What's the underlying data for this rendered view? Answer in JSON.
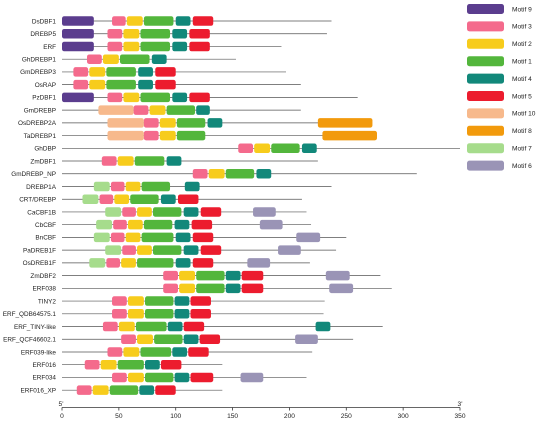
{
  "chart_data": {
    "type": "motif-distribution",
    "x_axis": {
      "min": 0,
      "max": 350,
      "ticks": [
        0,
        50,
        100,
        150,
        200,
        250,
        300,
        350
      ],
      "start_label": "5'",
      "end_label": "3'"
    },
    "motifs": [
      {
        "name": "Motif 9",
        "color": "#5b3d8e"
      },
      {
        "name": "Motif 3",
        "color": "#f46a8c"
      },
      {
        "name": "Motif 2",
        "color": "#f7cc1c"
      },
      {
        "name": "Motif 1",
        "color": "#53b63c"
      },
      {
        "name": "Motif 4",
        "color": "#12887a"
      },
      {
        "name": "Motif 5",
        "color": "#ec1c2e"
      },
      {
        "name": "Motif 10",
        "color": "#f7b98c"
      },
      {
        "name": "Motif 8",
        "color": "#f29a0c"
      },
      {
        "name": "Motif 7",
        "color": "#a6dc8c"
      },
      {
        "name": "Motif 6",
        "color": "#9a94b6"
      }
    ],
    "sequences": [
      {
        "name": "DsDBF1",
        "length": 237,
        "motifs": [
          [
            "Motif 9",
            0,
            28
          ],
          [
            "Motif 3",
            44,
            56
          ],
          [
            "Motif 2",
            57,
            71
          ],
          [
            "Motif 1",
            72,
            98
          ],
          [
            "Motif 4",
            100,
            113
          ],
          [
            "Motif 5",
            115,
            133
          ]
        ]
      },
      {
        "name": "DREBP5",
        "length": 233,
        "motifs": [
          [
            "Motif 9",
            0,
            28
          ],
          [
            "Motif 3",
            40,
            53
          ],
          [
            "Motif 2",
            54,
            68
          ],
          [
            "Motif 1",
            69,
            95
          ],
          [
            "Motif 4",
            97,
            110
          ],
          [
            "Motif 5",
            112,
            130
          ]
        ]
      },
      {
        "name": "ERF",
        "length": 193,
        "motifs": [
          [
            "Motif 9",
            0,
            28
          ],
          [
            "Motif 3",
            40,
            53
          ],
          [
            "Motif 2",
            54,
            68
          ],
          [
            "Motif 1",
            69,
            95
          ],
          [
            "Motif 4",
            97,
            110
          ],
          [
            "Motif 5",
            112,
            130
          ]
        ]
      },
      {
        "name": "GhDREBP1",
        "length": 153,
        "motifs": [
          [
            "Motif 3",
            22,
            35
          ],
          [
            "Motif 2",
            36,
            50
          ],
          [
            "Motif 1",
            51,
            77
          ],
          [
            "Motif 4",
            79,
            92
          ]
        ]
      },
      {
        "name": "GmDREBP3",
        "length": 197,
        "motifs": [
          [
            "Motif 3",
            10,
            23
          ],
          [
            "Motif 2",
            24,
            38
          ],
          [
            "Motif 1",
            39,
            65
          ],
          [
            "Motif 4",
            67,
            80
          ],
          [
            "Motif 5",
            82,
            100
          ]
        ]
      },
      {
        "name": "OsRAP",
        "length": 210,
        "motifs": [
          [
            "Motif 3",
            10,
            23
          ],
          [
            "Motif 2",
            24,
            38
          ],
          [
            "Motif 1",
            39,
            65
          ],
          [
            "Motif 4",
            67,
            80
          ],
          [
            "Motif 5",
            82,
            100
          ]
        ]
      },
      {
        "name": "PzDBF1",
        "length": 260,
        "motifs": [
          [
            "Motif 9",
            0,
            28
          ],
          [
            "Motif 3",
            40,
            53
          ],
          [
            "Motif 2",
            54,
            68
          ],
          [
            "Motif 1",
            69,
            95
          ],
          [
            "Motif 4",
            97,
            110
          ],
          [
            "Motif 5",
            112,
            130
          ]
        ]
      },
      {
        "name": "GmDREBP",
        "length": 210,
        "motifs": [
          [
            "Motif 10",
            32,
            63
          ],
          [
            "Motif 3",
            63,
            76
          ],
          [
            "Motif 2",
            77,
            91
          ],
          [
            "Motif 1",
            92,
            117
          ],
          [
            "Motif 4",
            118,
            130
          ]
        ]
      },
      {
        "name": "OsDREBP2A",
        "length": 272,
        "motifs": [
          [
            "Motif 10",
            40,
            72
          ],
          [
            "Motif 3",
            72,
            85
          ],
          [
            "Motif 2",
            86,
            100
          ],
          [
            "Motif 1",
            101,
            126
          ],
          [
            "Motif 4",
            128,
            141
          ],
          [
            "Motif 8",
            225,
            273
          ]
        ]
      },
      {
        "name": "TaDREBP1",
        "length": 277,
        "motifs": [
          [
            "Motif 10",
            40,
            72
          ],
          [
            "Motif 3",
            72,
            85
          ],
          [
            "Motif 2",
            86,
            100
          ],
          [
            "Motif 1",
            101,
            126
          ],
          [
            "Motif 8",
            229,
            277
          ]
        ]
      },
      {
        "name": "GhDBP",
        "length": 350,
        "motifs": [
          [
            "Motif 3",
            155,
            168
          ],
          [
            "Motif 2",
            169,
            183
          ],
          [
            "Motif 1",
            184,
            209
          ],
          [
            "Motif 4",
            211,
            224
          ]
        ]
      },
      {
        "name": "ZmDBF1",
        "length": 225,
        "motifs": [
          [
            "Motif 3",
            35,
            48
          ],
          [
            "Motif 2",
            49,
            63
          ],
          [
            "Motif 1",
            64,
            90
          ],
          [
            "Motif 4",
            92,
            105
          ]
        ]
      },
      {
        "name": "GmDREBP_NP",
        "length": 312,
        "motifs": [
          [
            "Motif 3",
            115,
            128
          ],
          [
            "Motif 2",
            129,
            143
          ],
          [
            "Motif 1",
            144,
            169
          ],
          [
            "Motif 4",
            171,
            184
          ]
        ]
      },
      {
        "name": "DREBP1A",
        "length": 237,
        "motifs": [
          [
            "Motif 7",
            28,
            42
          ],
          [
            "Motif 3",
            43,
            55
          ],
          [
            "Motif 2",
            56,
            69
          ],
          [
            "Motif 1",
            70,
            95
          ],
          [
            "Motif 4",
            108,
            121
          ]
        ]
      },
      {
        "name": "CRT/DREBP",
        "length": 211,
        "motifs": [
          [
            "Motif 7",
            18,
            32
          ],
          [
            "Motif 3",
            33,
            45
          ],
          [
            "Motif 2",
            46,
            59
          ],
          [
            "Motif 1",
            60,
            85
          ],
          [
            "Motif 4",
            87,
            100
          ],
          [
            "Motif 5",
            102,
            120
          ]
        ]
      },
      {
        "name": "CaCBF1B",
        "length": 215,
        "motifs": [
          [
            "Motif 7",
            38,
            52
          ],
          [
            "Motif 3",
            53,
            65
          ],
          [
            "Motif 2",
            66,
            79
          ],
          [
            "Motif 1",
            80,
            105
          ],
          [
            "Motif 4",
            107,
            120
          ],
          [
            "Motif 5",
            122,
            140
          ],
          [
            "Motif 6",
            168,
            188
          ]
        ]
      },
      {
        "name": "CbCBF",
        "length": 219,
        "motifs": [
          [
            "Motif 7",
            30,
            44
          ],
          [
            "Motif 3",
            45,
            57
          ],
          [
            "Motif 2",
            58,
            71
          ],
          [
            "Motif 1",
            72,
            97
          ],
          [
            "Motif 4",
            99,
            112
          ],
          [
            "Motif 5",
            114,
            132
          ],
          [
            "Motif 6",
            174,
            194
          ]
        ]
      },
      {
        "name": "BnCBF",
        "length": 250,
        "motifs": [
          [
            "Motif 7",
            28,
            42
          ],
          [
            "Motif 3",
            43,
            55
          ],
          [
            "Motif 2",
            56,
            69
          ],
          [
            "Motif 1",
            70,
            98
          ],
          [
            "Motif 4",
            100,
            113
          ],
          [
            "Motif 5",
            115,
            133
          ],
          [
            "Motif 6",
            206,
            227
          ]
        ]
      },
      {
        "name": "PaDREB1F",
        "length": 241,
        "motifs": [
          [
            "Motif 7",
            38,
            52
          ],
          [
            "Motif 3",
            53,
            65
          ],
          [
            "Motif 2",
            66,
            79
          ],
          [
            "Motif 1",
            80,
            105
          ],
          [
            "Motif 4",
            107,
            120
          ],
          [
            "Motif 5",
            122,
            140
          ],
          [
            "Motif 6",
            190,
            210
          ]
        ]
      },
      {
        "name": "OsDREB1F",
        "length": 218,
        "motifs": [
          [
            "Motif 7",
            24,
            38
          ],
          [
            "Motif 3",
            39,
            51
          ],
          [
            "Motif 2",
            52,
            65
          ],
          [
            "Motif 1",
            66,
            98
          ],
          [
            "Motif 4",
            100,
            113
          ],
          [
            "Motif 5",
            115,
            133
          ],
          [
            "Motif 6",
            163,
            183
          ]
        ]
      },
      {
        "name": "ZmDBF2",
        "length": 280,
        "motifs": [
          [
            "Motif 3",
            89,
            102
          ],
          [
            "Motif 2",
            103,
            117
          ],
          [
            "Motif 1",
            118,
            143
          ],
          [
            "Motif 4",
            144,
            157
          ],
          [
            "Motif 5",
            158,
            177
          ],
          [
            "Motif 6",
            232,
            253
          ]
        ]
      },
      {
        "name": "ERF038",
        "length": 290,
        "motifs": [
          [
            "Motif 3",
            89,
            102
          ],
          [
            "Motif 2",
            103,
            117
          ],
          [
            "Motif 1",
            118,
            143
          ],
          [
            "Motif 4",
            144,
            157
          ],
          [
            "Motif 5",
            158,
            177
          ],
          [
            "Motif 6",
            235,
            256
          ]
        ]
      },
      {
        "name": "TINY2",
        "length": 231,
        "motifs": [
          [
            "Motif 3",
            44,
            57
          ],
          [
            "Motif 2",
            58,
            72
          ],
          [
            "Motif 1",
            73,
            98
          ],
          [
            "Motif 4",
            99,
            112
          ],
          [
            "Motif 5",
            113,
            131
          ]
        ]
      },
      {
        "name": "ERF_QDB64575.1",
        "length": 230,
        "motifs": [
          [
            "Motif 3",
            44,
            57
          ],
          [
            "Motif 2",
            58,
            72
          ],
          [
            "Motif 1",
            73,
            98
          ],
          [
            "Motif 4",
            99,
            112
          ],
          [
            "Motif 5",
            113,
            131
          ]
        ]
      },
      {
        "name": "ERF_TINY-like",
        "length": 282,
        "motifs": [
          [
            "Motif 3",
            36,
            49
          ],
          [
            "Motif 2",
            50,
            64
          ],
          [
            "Motif 1",
            65,
            92
          ],
          [
            "Motif 4",
            93,
            106
          ],
          [
            "Motif 5",
            107,
            125
          ],
          [
            "Motif 4",
            223,
            236
          ]
        ]
      },
      {
        "name": "ERF_QCF46602.1",
        "length": 256,
        "motifs": [
          [
            "Motif 3",
            52,
            65
          ],
          [
            "Motif 2",
            66,
            80
          ],
          [
            "Motif 1",
            81,
            106
          ],
          [
            "Motif 4",
            107,
            120
          ],
          [
            "Motif 5",
            121,
            139
          ],
          [
            "Motif 6",
            205,
            225
          ]
        ]
      },
      {
        "name": "ERF039-like",
        "length": 220,
        "motifs": [
          [
            "Motif 3",
            40,
            53
          ],
          [
            "Motif 2",
            54,
            68
          ],
          [
            "Motif 1",
            69,
            96
          ],
          [
            "Motif 4",
            97,
            110
          ],
          [
            "Motif 5",
            111,
            129
          ]
        ]
      },
      {
        "name": "ERF016",
        "length": 141,
        "motifs": [
          [
            "Motif 3",
            20,
            33
          ],
          [
            "Motif 2",
            34,
            48
          ],
          [
            "Motif 1",
            49,
            72
          ],
          [
            "Motif 4",
            73,
            86
          ],
          [
            "Motif 5",
            87,
            105
          ]
        ]
      },
      {
        "name": "ERF034",
        "length": 215,
        "motifs": [
          [
            "Motif 3",
            44,
            57
          ],
          [
            "Motif 2",
            58,
            72
          ],
          [
            "Motif 1",
            73,
            98
          ],
          [
            "Motif 4",
            99,
            112
          ],
          [
            "Motif 5",
            113,
            133
          ],
          [
            "Motif 6",
            157,
            177
          ]
        ]
      },
      {
        "name": "ERF016_XP",
        "length": 141,
        "motifs": [
          [
            "Motif 3",
            13,
            26
          ],
          [
            "Motif 2",
            27,
            41
          ],
          [
            "Motif 1",
            42,
            67
          ],
          [
            "Motif 4",
            68,
            81
          ],
          [
            "Motif 5",
            82,
            100
          ]
        ]
      }
    ]
  }
}
